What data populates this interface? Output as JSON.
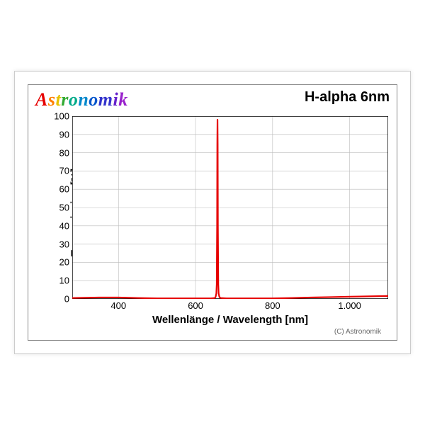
{
  "logo": {
    "text": "Astronomik",
    "colors": [
      "#e60000",
      "#ff7f00",
      "#e6c200",
      "#33aa33",
      "#00aa88",
      "#0088cc",
      "#0055cc",
      "#3333cc",
      "#6622cc",
      "#9922cc",
      "#cc22aa"
    ]
  },
  "subtitle": "H-alpha 6nm",
  "ylabel": "Transmission [%]",
  "xlabel": "Wellenlänge / Wavelength [nm]",
  "copyright": "(C) Astronomik",
  "chart": {
    "type": "line",
    "xlim": [
      280,
      1100
    ],
    "ylim": [
      0,
      100
    ],
    "xtick_step": 200,
    "xtick_start": 400,
    "ytick_step": 10,
    "xtick_format": "dot-thousand",
    "background_color": "#ffffff",
    "grid_color": "#bbbbbb",
    "axis_color": "#000000",
    "grid_line_width": 0.6,
    "series": {
      "color": "#e60000",
      "line_width": 2.2,
      "points": [
        [
          280,
          0.5
        ],
        [
          350,
          0.8
        ],
        [
          400,
          0.8
        ],
        [
          450,
          0.5
        ],
        [
          500,
          0.3
        ],
        [
          550,
          0.3
        ],
        [
          600,
          0.3
        ],
        [
          640,
          0.3
        ],
        [
          650,
          0.5
        ],
        [
          652,
          1
        ],
        [
          654,
          3
        ],
        [
          655,
          8
        ],
        [
          656,
          40
        ],
        [
          656.5,
          85
        ],
        [
          657,
          98
        ],
        [
          657.5,
          85
        ],
        [
          658,
          40
        ],
        [
          659,
          8
        ],
        [
          660,
          3
        ],
        [
          662,
          1
        ],
        [
          665,
          0.5
        ],
        [
          680,
          0.3
        ],
        [
          700,
          0.3
        ],
        [
          750,
          0.3
        ],
        [
          800,
          0.3
        ],
        [
          850,
          0.5
        ],
        [
          900,
          0.8
        ],
        [
          950,
          1.0
        ],
        [
          1000,
          1.2
        ],
        [
          1050,
          1.4
        ],
        [
          1100,
          1.6
        ]
      ]
    }
  }
}
